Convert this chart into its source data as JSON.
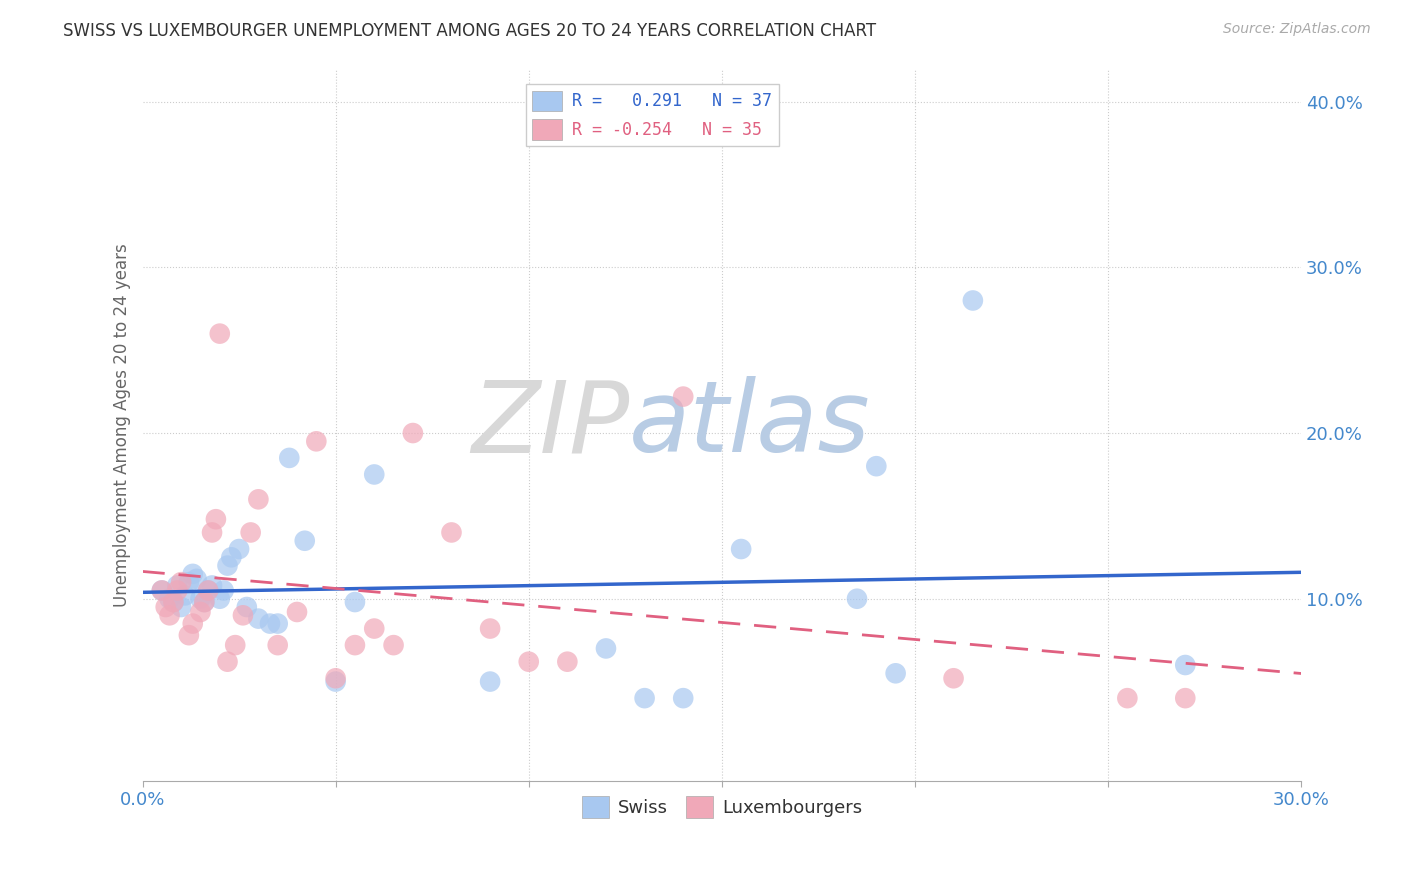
{
  "title": "SWISS VS LUXEMBOURGER UNEMPLOYMENT AMONG AGES 20 TO 24 YEARS CORRELATION CHART",
  "source": "Source: ZipAtlas.com",
  "ylabel": "Unemployment Among Ages 20 to 24 years",
  "xlim": [
    0.0,
    0.3
  ],
  "ylim": [
    -0.01,
    0.42
  ],
  "xticks": [
    0.0,
    0.05,
    0.1,
    0.15,
    0.2,
    0.25,
    0.3
  ],
  "yticks_right": [
    0.1,
    0.2,
    0.3,
    0.4
  ],
  "swiss_R": "0.291",
  "swiss_N": "37",
  "lux_R": "-0.254",
  "lux_N": "35",
  "swiss_color": "#a8c8f0",
  "lux_color": "#f0a8b8",
  "swiss_line_color": "#3366cc",
  "lux_line_color": "#e06080",
  "background_color": "#ffffff",
  "swiss_x": [
    0.005,
    0.007,
    0.008,
    0.009,
    0.01,
    0.011,
    0.012,
    0.013,
    0.014,
    0.015,
    0.016,
    0.017,
    0.018,
    0.02,
    0.021,
    0.022,
    0.023,
    0.025,
    0.027,
    0.03,
    0.033,
    0.035,
    0.038,
    0.042,
    0.05,
    0.055,
    0.06,
    0.09,
    0.12,
    0.13,
    0.14,
    0.155,
    0.185,
    0.19,
    0.195,
    0.215,
    0.27
  ],
  "swiss_y": [
    0.105,
    0.1,
    0.098,
    0.108,
    0.095,
    0.102,
    0.11,
    0.115,
    0.112,
    0.1,
    0.098,
    0.105,
    0.108,
    0.1,
    0.105,
    0.12,
    0.125,
    0.13,
    0.095,
    0.088,
    0.085,
    0.085,
    0.185,
    0.135,
    0.05,
    0.098,
    0.175,
    0.05,
    0.07,
    0.04,
    0.04,
    0.13,
    0.1,
    0.18,
    0.055,
    0.28,
    0.06
  ],
  "lux_x": [
    0.005,
    0.006,
    0.007,
    0.008,
    0.009,
    0.01,
    0.012,
    0.013,
    0.015,
    0.016,
    0.017,
    0.018,
    0.019,
    0.02,
    0.022,
    0.024,
    0.026,
    0.028,
    0.03,
    0.035,
    0.04,
    0.045,
    0.05,
    0.055,
    0.06,
    0.065,
    0.07,
    0.08,
    0.09,
    0.1,
    0.11,
    0.14,
    0.21,
    0.255,
    0.27
  ],
  "lux_y": [
    0.105,
    0.095,
    0.09,
    0.098,
    0.105,
    0.11,
    0.078,
    0.085,
    0.092,
    0.098,
    0.105,
    0.14,
    0.148,
    0.26,
    0.062,
    0.072,
    0.09,
    0.14,
    0.16,
    0.072,
    0.092,
    0.195,
    0.052,
    0.072,
    0.082,
    0.072,
    0.2,
    0.14,
    0.082,
    0.062,
    0.062,
    0.222,
    0.052,
    0.04,
    0.04
  ]
}
